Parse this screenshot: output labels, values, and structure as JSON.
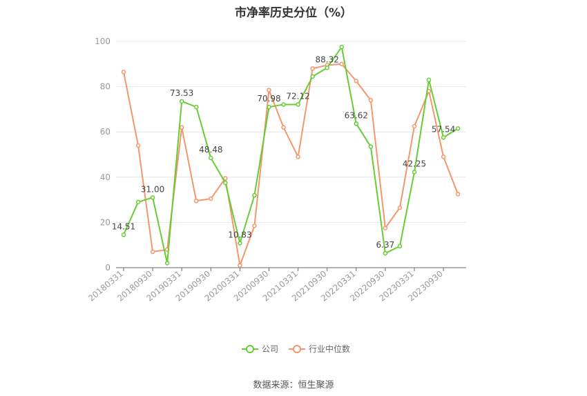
{
  "chart_data": {
    "type": "line",
    "title": "市净率历史分位（%）",
    "source": "数据来源：恒生聚源",
    "ylim": [
      0,
      100
    ],
    "yticks": [
      0,
      20,
      40,
      60,
      80,
      100
    ],
    "grid": true,
    "legend_position": "bottom",
    "x": [
      "20180331",
      "20180630",
      "20180930",
      "20181231",
      "20190331",
      "20190630",
      "20190930",
      "20191231",
      "20200331",
      "20200630",
      "20200930",
      "20201231",
      "20210331",
      "20210630",
      "20210930",
      "20211231",
      "20220331",
      "20220630",
      "20220930",
      "20221231",
      "20230331",
      "20230630",
      "20230930",
      "20231231"
    ],
    "xtick_labels": [
      "20180331",
      "20180930",
      "20190331",
      "20190930",
      "20200331",
      "20200930",
      "20210331",
      "20210930",
      "20220331",
      "20220930",
      "20230331",
      "20230930"
    ],
    "series": [
      {
        "name": "公司",
        "color": "#66cc33",
        "values": [
          14.51,
          29.0,
          31.0,
          2.0,
          73.53,
          71.0,
          48.48,
          37.5,
          10.83,
          32.0,
          70.98,
          72.12,
          72.12,
          84.5,
          88.32,
          97.5,
          63.62,
          53.5,
          6.37,
          9.5,
          42.25,
          83.0,
          57.54,
          61.5
        ],
        "labels": {
          "0": "14.51",
          "2": "31.00",
          "4": "73.53",
          "6": "48.48",
          "8": "10.83",
          "10": "70.98",
          "12": "72.12",
          "14": "88.32",
          "16": "63.62",
          "18": "6.37",
          "20": "42.25",
          "22": "57.54"
        }
      },
      {
        "name": "行业中位数",
        "color": "#f4956a",
        "values": [
          86.5,
          54.0,
          7.0,
          8.0,
          62.0,
          29.5,
          30.5,
          39.5,
          1.0,
          18.5,
          78.5,
          62.0,
          49.0,
          88.0,
          89.5,
          90.0,
          82.5,
          74.0,
          17.5,
          26.5,
          62.5,
          78.0,
          49.0,
          32.5
        ]
      }
    ]
  }
}
